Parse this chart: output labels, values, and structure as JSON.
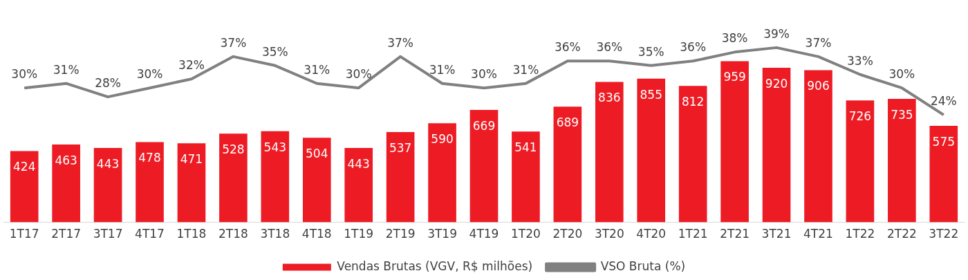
{
  "chart_data": {
    "type": "bar",
    "categories": [
      "1T17",
      "2T17",
      "3T17",
      "4T17",
      "1T18",
      "2T18",
      "3T18",
      "4T18",
      "1T19",
      "2T19",
      "3T19",
      "4T19",
      "1T20",
      "2T20",
      "3T20",
      "4T20",
      "1T21",
      "2T21",
      "3T21",
      "4T21",
      "1T22",
      "2T22",
      "3T22"
    ],
    "series": [
      {
        "name": "Vendas Brutas (VGV, R$ milhões)",
        "color": "#ed1c24",
        "values": [
          424,
          463,
          443,
          478,
          471,
          528,
          543,
          504,
          443,
          537,
          590,
          669,
          541,
          689,
          836,
          855,
          812,
          959,
          920,
          906,
          726,
          735,
          575
        ]
      },
      {
        "name": "VSO Bruta (%)",
        "type": "line",
        "axis": "y2",
        "color": "#808080",
        "values": [
          30,
          31,
          28,
          30,
          32,
          37,
          35,
          31,
          30,
          37,
          31,
          30,
          31,
          36,
          36,
          35,
          36,
          38,
          39,
          37,
          33,
          30,
          24
        ],
        "value_labels": [
          "30%",
          "31%",
          "28%",
          "30%",
          "32%",
          "37%",
          "35%",
          "31%",
          "30%",
          "37%",
          "31%",
          "30%",
          "31%",
          "36%",
          "36%",
          "35%",
          "36%",
          "38%",
          "39%",
          "37%",
          "33%",
          "30%",
          "24%"
        ]
      }
    ],
    "data_labels": true,
    "legend": "bottom",
    "marker": "none",
    "grid": false
  }
}
